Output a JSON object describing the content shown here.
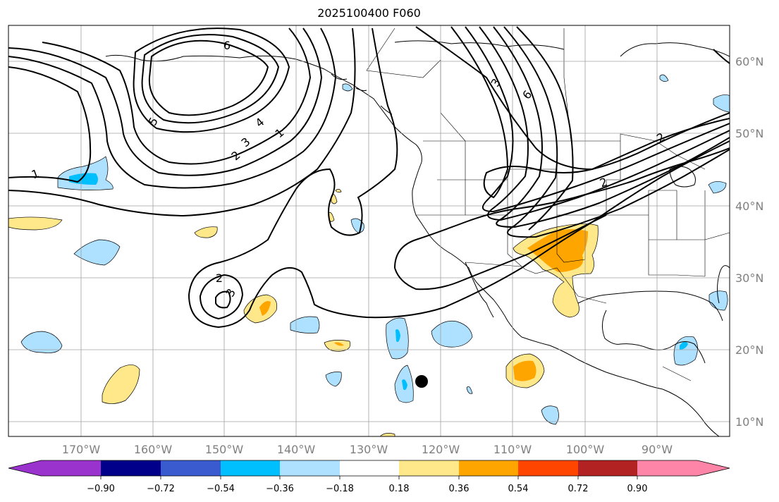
{
  "title": "2025100400 F060",
  "map": {
    "lon_labels": [
      "170°W",
      "160°W",
      "150°W",
      "140°W",
      "130°W",
      "120°W",
      "110°W",
      "100°W",
      "90°W"
    ],
    "lat_labels": [
      "60°N",
      "50°N",
      "40°N",
      "30°N",
      "20°N",
      "10°N"
    ],
    "contour_labels": [
      "6",
      "5",
      "4",
      "3",
      "2",
      "1",
      "1",
      "2",
      "3",
      "3",
      "6",
      "2",
      "2"
    ],
    "station_marker": "black dot"
  },
  "colorbar": {
    "ticks": [
      "−0.90",
      "−0.72",
      "−0.54",
      "−0.36",
      "−0.18",
      "0.18",
      "0.36",
      "0.54",
      "0.72",
      "0.90"
    ],
    "colors": [
      "#9a32cd",
      "#00008b",
      "#3a5bcf",
      "#00bfff",
      "#aee0ff",
      "#ffffff",
      "#ffe88a",
      "#ffa500",
      "#ff4500",
      "#b22222",
      "#ff85a8"
    ]
  }
}
